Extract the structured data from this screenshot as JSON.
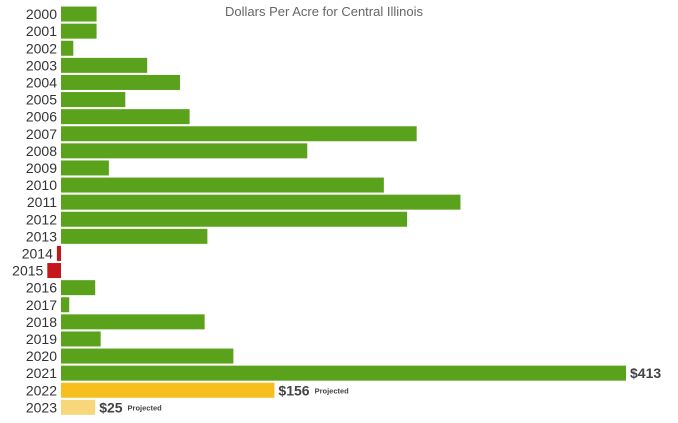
{
  "chart_data": {
    "type": "bar",
    "orientation": "horizontal",
    "title": "Dollars Per Acre for Central Illinois",
    "xlabel": "",
    "ylabel": "",
    "grid": false,
    "legend": "none",
    "xlim": [
      -10,
      413
    ],
    "categories": [
      "2000",
      "2001",
      "2002",
      "2003",
      "2004",
      "2005",
      "2006",
      "2007",
      "2008",
      "2009",
      "2010",
      "2011",
      "2012",
      "2013",
      "2014",
      "2015",
      "2016",
      "2017",
      "2018",
      "2019",
      "2020",
      "2021",
      "2022",
      "2023"
    ],
    "values": [
      26,
      26,
      9,
      63,
      87,
      47,
      94,
      260,
      180,
      35,
      236,
      292,
      253,
      107,
      -3,
      -10,
      25,
      6,
      105,
      29,
      126,
      413,
      156,
      25
    ],
    "bar_status": [
      "actual",
      "actual",
      "actual",
      "actual",
      "actual",
      "actual",
      "actual",
      "actual",
      "actual",
      "actual",
      "actual",
      "actual",
      "actual",
      "actual",
      "actual",
      "actual",
      "actual",
      "actual",
      "actual",
      "actual",
      "actual",
      "actual",
      "projected",
      "projected"
    ],
    "data_labels": [
      {
        "category": "2021",
        "text": "$413",
        "note": ""
      },
      {
        "category": "2022",
        "text": "$156",
        "note": "Projected"
      },
      {
        "category": "2023",
        "text": "$25",
        "note": "Projected"
      }
    ],
    "colors": {
      "positive": "#5ba21c",
      "negative": "#c4161c",
      "projected_2022": "#f6bf1d",
      "projected_2023": "#f8d77a"
    }
  }
}
